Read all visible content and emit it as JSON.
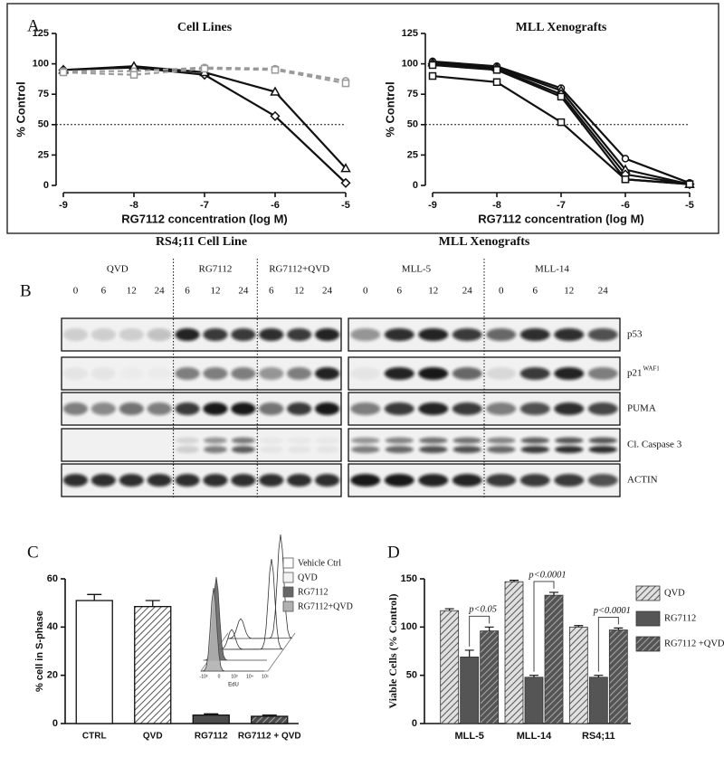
{
  "panels": [
    "A",
    "B",
    "C",
    "D"
  ],
  "chart_data": [
    {
      "type": "line",
      "title": "Cell Lines",
      "x_label": "RG7112 concentration (log M)",
      "y_label": "% Control",
      "x": [
        -9,
        -8,
        -7,
        -6,
        -5
      ],
      "xlim": [
        -9,
        -5
      ],
      "xticks": [
        -9,
        -8,
        -7,
        -6,
        -5
      ],
      "ylim": [
        0,
        125
      ],
      "yticks": [
        0,
        25,
        50,
        75,
        100,
        125
      ],
      "reference_line": 50,
      "series": [
        {
          "color": "#111111",
          "dashed": false,
          "marker": "diamond",
          "values": [
            95,
            97,
            91,
            57,
            2
          ]
        },
        {
          "color": "#111111",
          "dashed": false,
          "marker": "triangle",
          "values": [
            95,
            98,
            93,
            77,
            14
          ]
        },
        {
          "color": "#999999",
          "dashed": true,
          "marker": "circle",
          "values": [
            94,
            94,
            97,
            96,
            86
          ]
        },
        {
          "color": "#999999",
          "dashed": true,
          "marker": "square",
          "values": [
            93,
            91,
            96,
            95,
            84
          ]
        }
      ]
    },
    {
      "type": "line",
      "title": "MLL Xenografts",
      "x_label": "RG7112 concentration (log M)",
      "y_label": "% Control",
      "x": [
        -9,
        -8,
        -7,
        -6,
        -5
      ],
      "xlim": [
        -9,
        -5
      ],
      "xticks": [
        -9,
        -8,
        -7,
        -6,
        -5
      ],
      "ylim": [
        0,
        125
      ],
      "yticks": [
        0,
        25,
        50,
        75,
        100,
        125
      ],
      "reference_line": 50,
      "series": [
        {
          "color": "#111111",
          "dashed": false,
          "marker": "circle",
          "values": [
            102,
            98,
            80,
            22,
            2
          ]
        },
        {
          "color": "#111111",
          "dashed": false,
          "marker": "triangle",
          "values": [
            101,
            97,
            78,
            13,
            1
          ]
        },
        {
          "color": "#111111",
          "dashed": false,
          "marker": "diamond",
          "values": [
            100,
            96,
            75,
            9,
            1
          ]
        },
        {
          "color": "#111111",
          "dashed": false,
          "marker": "square",
          "values": [
            99,
            95,
            73,
            5,
            1
          ]
        },
        {
          "color": "#111111",
          "dashed": false,
          "marker": "square",
          "values": [
            90,
            85,
            52,
            5,
            1
          ]
        }
      ]
    },
    {
      "type": "bar",
      "y_label": "% cell in S-phase",
      "categories": [
        "CTRL",
        "QVD",
        "RG7112",
        "RG7112 + QVD"
      ],
      "values": [
        51,
        48.5,
        3.5,
        3
      ],
      "errors": [
        2.5,
        2.5,
        0.5,
        0.5
      ],
      "colors": [
        "#ffffff",
        "#ffffff",
        "#4d4d4d",
        "#4d4d4d"
      ],
      "hatch": [
        false,
        true,
        false,
        true
      ],
      "ylim": [
        0,
        60
      ],
      "yticks": [
        0,
        20,
        40,
        60
      ],
      "inset": {
        "legend": [
          {
            "name": "Vehicle Ctrl",
            "color": "#ffffff"
          },
          {
            "name": "QVD",
            "color": "#f2f2f2"
          },
          {
            "name": "RG7112",
            "color": "#666666"
          },
          {
            "name": "RG7112+QVD",
            "color": "#b0b0b0"
          }
        ],
        "x_label": "EdU",
        "xtick_labels": [
          "-10³",
          "0",
          "10³",
          "10⁴",
          "10⁵"
        ]
      }
    },
    {
      "type": "grouped_bar",
      "y_label": "Viable Cells (% Control)",
      "categories": [
        "MLL-5",
        "MLL-14",
        "RS4;11"
      ],
      "ylim": [
        0,
        150
      ],
      "yticks": [
        0,
        50,
        100,
        150
      ],
      "series": [
        {
          "name": "QVD",
          "color": "#e0e0e0",
          "hatch": true,
          "values": [
            117,
            147,
            100
          ],
          "errors": [
            2,
            1.5,
            1.5
          ]
        },
        {
          "name": "RG7112",
          "color": "#555555",
          "hatch": false,
          "values": [
            69,
            48,
            48
          ],
          "errors": [
            7,
            2,
            2
          ]
        },
        {
          "name": "RG7112 +QVD",
          "color": "#555555",
          "hatch": true,
          "values": [
            96,
            133,
            97
          ],
          "errors": [
            4,
            3,
            2
          ]
        }
      ],
      "annotations": [
        "p<0.05",
        "p<0.0001",
        "p<0.0001"
      ]
    }
  ],
  "blot": {
    "sides": [
      {
        "title": "RS4;11 Cell Line",
        "groups": [
          {
            "label": "QVD",
            "lanes": [
              0,
              6,
              12,
              24
            ]
          },
          {
            "label": "RG7112",
            "lanes": [
              6,
              12,
              24
            ]
          },
          {
            "label": "RG7112+QVD",
            "lanes": [
              6,
              12,
              24
            ]
          }
        ]
      },
      {
        "title": "MLL Xenografts",
        "groups": [
          {
            "label": "MLL-5",
            "lanes": [
              0,
              6,
              12,
              24
            ]
          },
          {
            "label": "MLL-14",
            "lanes": [
              0,
              6,
              12,
              24
            ]
          }
        ]
      }
    ],
    "rows": [
      {
        "label": "p53"
      },
      {
        "label": "p21",
        "superscript": "WAF1"
      },
      {
        "label": "PUMA"
      },
      {
        "label": "Cl. Caspase 3"
      },
      {
        "label": "ACTIN"
      }
    ]
  }
}
